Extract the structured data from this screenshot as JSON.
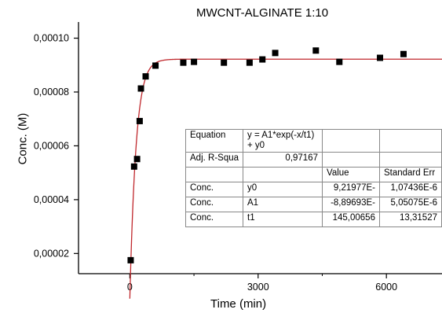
{
  "chart_data": {
    "type": "scatter",
    "title": "MWCNT-ALGINATE 1:10",
    "xlabel": "Time (min)",
    "ylabel": "Conc. (M)",
    "xlim": [
      -1200,
      7300
    ],
    "ylim": [
      1.25e-05,
      0.000106
    ],
    "x_ticks": [
      0,
      3000,
      6000
    ],
    "x_tick_labels": [
      "0",
      "3000",
      "6000"
    ],
    "y_ticks": [
      2e-05,
      4e-05,
      6e-05,
      8e-05,
      0.0001
    ],
    "y_tick_labels": [
      "0,00002",
      "0,00004",
      "0,00006",
      "0,00008",
      "0,00010"
    ],
    "grid": false,
    "marker_color": "#000000",
    "fit_color": "#c0282d",
    "series": [
      {
        "kind": "points",
        "x": [
          20,
          100,
          170,
          230,
          260,
          370,
          600,
          1250,
          1500,
          2200,
          2800,
          3100,
          3400,
          4350,
          4900,
          5850,
          6400
        ],
        "y": [
          1.75e-05,
          5.23e-05,
          5.51e-05,
          6.92e-05,
          8.13e-05,
          8.58e-05,
          8.98e-05,
          9.09e-05,
          9.12e-05,
          9.09e-05,
          9.09e-05,
          9.21e-05,
          9.45e-05,
          9.54e-05,
          9.12e-05,
          9.27e-05,
          9.41e-05
        ]
      },
      {
        "kind": "fit",
        "model": "y = A1*exp(-x/t1) + y0",
        "y0": 9.21977e-05,
        "A1": -8.89693e-05,
        "t1": 145.00656,
        "x_range": [
          0,
          7300
        ]
      }
    ],
    "fit_table": {
      "rows": [
        [
          "Equation",
          "y = A1*exp(-x/t1) + y0",
          "",
          ""
        ],
        [
          "Adj. R-Squa",
          "0,97167",
          "",
          ""
        ],
        [
          "",
          "",
          "Value",
          "Standard Err"
        ],
        [
          "Conc.",
          "y0",
          "9,21977E-",
          "1,07436E-6"
        ],
        [
          "Conc.",
          "A1",
          "-8,89693E-",
          "5,05075E-6"
        ],
        [
          "Conc.",
          "t1",
          "145,00656",
          "13,31527"
        ]
      ]
    }
  }
}
